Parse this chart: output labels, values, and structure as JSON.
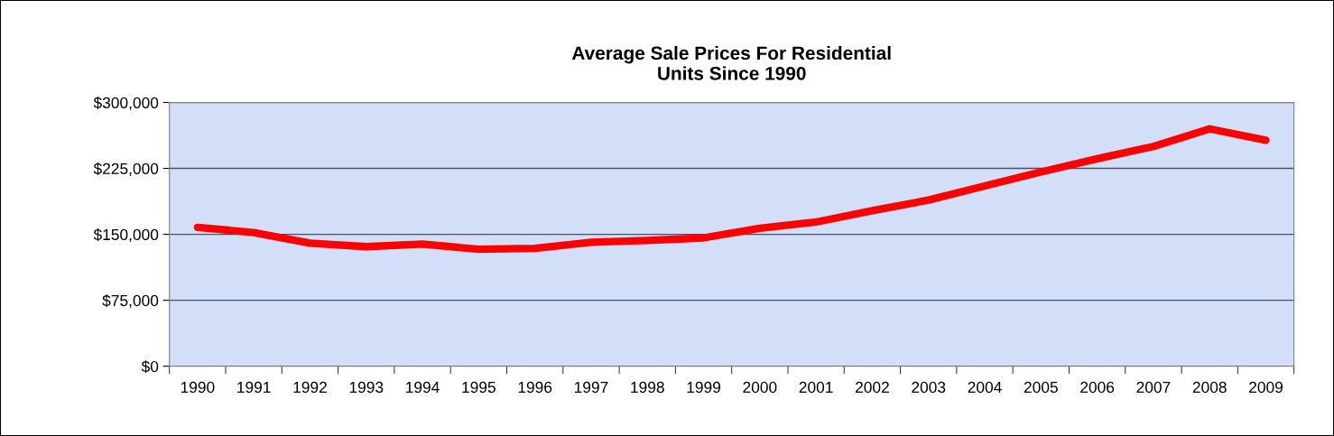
{
  "chart_data": {
    "type": "line",
    "title": "Average Sale Prices For Residential\nUnits Since 1990",
    "categories": [
      "1990",
      "1991",
      "1992",
      "1993",
      "1994",
      "1995",
      "1996",
      "1997",
      "1998",
      "1999",
      "2000",
      "2001",
      "2002",
      "2003",
      "2004",
      "2005",
      "2006",
      "2007",
      "2008",
      "2009"
    ],
    "series": [
      {
        "color": "#ff0000",
        "values": [
          158000,
          152000,
          140000,
          136000,
          139000,
          133000,
          134000,
          141000,
          143000,
          146000,
          157000,
          164000,
          177000,
          189000,
          205000,
          221000,
          236000,
          250000,
          270000,
          257000
        ]
      }
    ],
    "ylim": [
      0,
      300000
    ],
    "yticks": [
      {
        "value": 0,
        "label": "$0"
      },
      {
        "value": 75000,
        "label": "$75,000"
      },
      {
        "value": 150000,
        "label": "$150,000"
      },
      {
        "value": 225000,
        "label": "$225,000"
      },
      {
        "value": 300000,
        "label": "$300,000"
      }
    ],
    "grid": "y",
    "legend": false,
    "marker": "none",
    "line_style": "solid"
  }
}
